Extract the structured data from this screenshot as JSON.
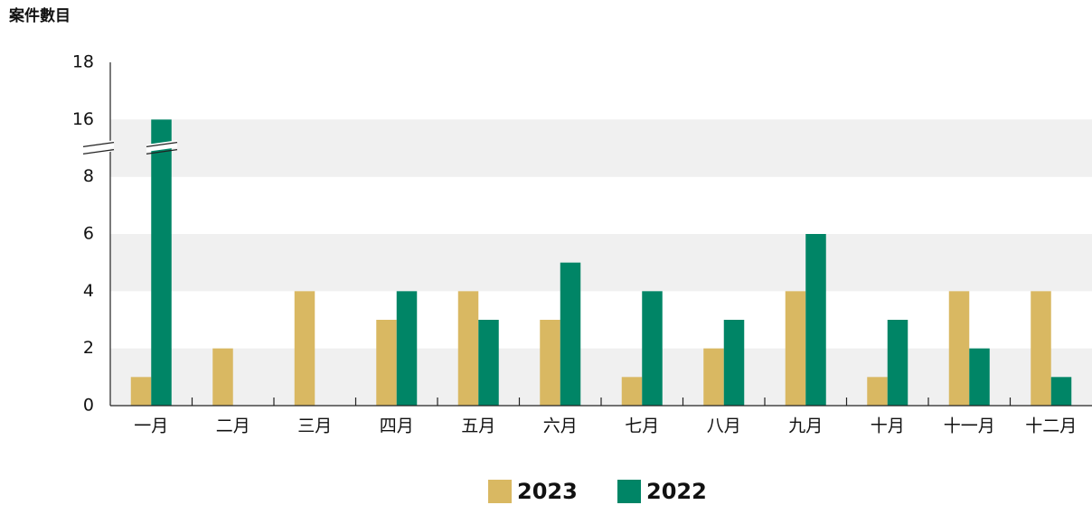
{
  "chart_data": {
    "type": "bar",
    "title": "案件數目",
    "categories": [
      "一月",
      "二月",
      "三月",
      "四月",
      "五月",
      "六月",
      "七月",
      "八月",
      "九月",
      "十月",
      "十一月",
      "十二月"
    ],
    "series": [
      {
        "name": "2023",
        "color": "#d9b862",
        "values": [
          1,
          2,
          4,
          3,
          4,
          3,
          1,
          2,
          4,
          1,
          4,
          4
        ]
      },
      {
        "name": "2022",
        "color": "#008566",
        "values": [
          16,
          0,
          0,
          4,
          3,
          5,
          4,
          3,
          6,
          3,
          2,
          1
        ]
      }
    ],
    "ylim": [
      0,
      18
    ],
    "yticks": [
      0,
      2,
      4,
      6,
      8,
      16,
      18
    ],
    "axis_break": [
      8,
      16
    ],
    "grid": "bands",
    "legend": "bottom"
  }
}
